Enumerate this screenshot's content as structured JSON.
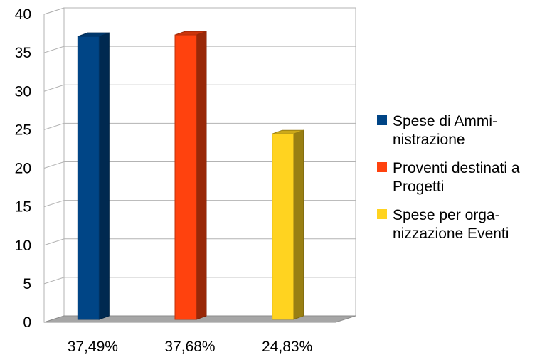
{
  "chart_data": {
    "type": "bar",
    "style": "3d",
    "categories": [
      "37,49%",
      "37,68%",
      "24,83%"
    ],
    "series": [
      {
        "name": "Spese di Ammi-\nnistrazione",
        "values": [
          37.49,
          null,
          null
        ],
        "color": "#004586"
      },
      {
        "name": "Proventi destinati a\nProgetti",
        "values": [
          null,
          37.68,
          null
        ],
        "color": "#ff420e"
      },
      {
        "name": "Spese per orga-\nnizzazione Eventi",
        "values": [
          null,
          null,
          24.83
        ],
        "color": "#ffd320"
      }
    ],
    "yticks": [
      "0",
      "5",
      "10",
      "15",
      "20",
      "25",
      "30",
      "35",
      "40"
    ],
    "ylim": [
      0,
      40
    ],
    "grid": true,
    "legend_position": "right"
  }
}
